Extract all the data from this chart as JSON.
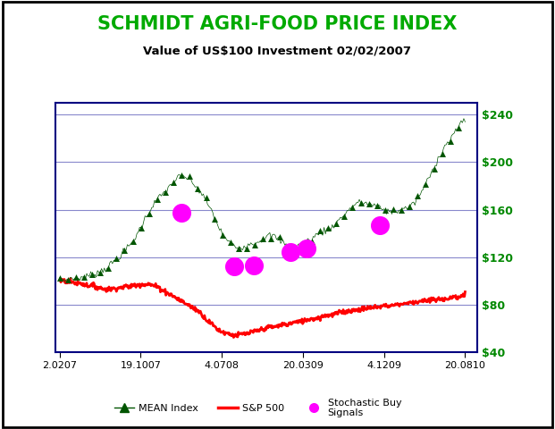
{
  "title": "SCHMIDT AGRI-FOOD PRICE INDEX",
  "subtitle": "Value of US$100 Investment 02/02/2007",
  "title_color": "#00aa00",
  "subtitle_color": "#000000",
  "outer_bg_color": "#ffffff",
  "plot_bg_color": "#ffffff",
  "x_tick_labels": [
    "2.0207",
    "19.1007",
    "4.0708",
    "20.0309",
    "4.1209",
    "20.0810"
  ],
  "y_right_labels": [
    "$40",
    "$80",
    "$120",
    "$160",
    "$200",
    "$240"
  ],
  "y_right_values": [
    40,
    80,
    120,
    160,
    200,
    240
  ],
  "ylim": [
    40,
    250
  ],
  "xlim": [
    0,
    1
  ],
  "mean_color": "#005500",
  "sp500_color": "#ff0000",
  "signal_color": "#ff00ff",
  "grid_color": "#8888cc",
  "border_color": "#000080",
  "mean_index_x": [
    0.0,
    0.02,
    0.04,
    0.06,
    0.08,
    0.1,
    0.12,
    0.14,
    0.16,
    0.18,
    0.2,
    0.22,
    0.24,
    0.26,
    0.28,
    0.3,
    0.32,
    0.34,
    0.36,
    0.38,
    0.4,
    0.42,
    0.44,
    0.46,
    0.48,
    0.5,
    0.52,
    0.54,
    0.56,
    0.58,
    0.6,
    0.62,
    0.64,
    0.66,
    0.68,
    0.7,
    0.72,
    0.74,
    0.76,
    0.78,
    0.8,
    0.82,
    0.84,
    0.86,
    0.88,
    0.9,
    0.92,
    0.94,
    0.96,
    0.98,
    1.0
  ],
  "mean_index_y": [
    100,
    101,
    102,
    103,
    105,
    108,
    112,
    118,
    125,
    133,
    145,
    158,
    168,
    175,
    183,
    188,
    185,
    178,
    168,
    155,
    140,
    132,
    128,
    130,
    132,
    135,
    138,
    135,
    130,
    128,
    132,
    135,
    140,
    143,
    148,
    155,
    162,
    166,
    165,
    163,
    160,
    158,
    160,
    162,
    168,
    180,
    193,
    208,
    218,
    228,
    235
  ],
  "sp500_x": [
    0.0,
    0.01,
    0.02,
    0.03,
    0.04,
    0.05,
    0.06,
    0.07,
    0.08,
    0.09,
    0.1,
    0.11,
    0.12,
    0.13,
    0.14,
    0.15,
    0.16,
    0.17,
    0.18,
    0.19,
    0.2,
    0.21,
    0.22,
    0.23,
    0.24,
    0.25,
    0.26,
    0.27,
    0.28,
    0.29,
    0.3,
    0.31,
    0.32,
    0.33,
    0.34,
    0.35,
    0.36,
    0.37,
    0.38,
    0.39,
    0.4,
    0.41,
    0.42,
    0.43,
    0.44,
    0.45,
    0.46,
    0.47,
    0.48,
    0.49,
    0.5,
    0.51,
    0.52,
    0.53,
    0.54,
    0.55,
    0.56,
    0.57,
    0.58,
    0.59,
    0.6,
    0.61,
    0.62,
    0.63,
    0.64,
    0.65,
    0.66,
    0.67,
    0.68,
    0.69,
    0.7,
    0.71,
    0.72,
    0.73,
    0.74,
    0.75,
    0.76,
    0.77,
    0.78,
    0.79,
    0.8,
    0.81,
    0.82,
    0.83,
    0.84,
    0.85,
    0.86,
    0.87,
    0.88,
    0.89,
    0.9,
    0.91,
    0.92,
    0.93,
    0.94,
    0.95,
    0.96,
    0.97,
    0.98,
    0.99,
    1.0
  ],
  "sp500_y": [
    100,
    100,
    99,
    99,
    98,
    98,
    97,
    96,
    96,
    95,
    94,
    93,
    93,
    93,
    94,
    94,
    95,
    95,
    96,
    96,
    97,
    97,
    97,
    96,
    95,
    93,
    91,
    89,
    87,
    85,
    83,
    81,
    79,
    77,
    75,
    72,
    68,
    65,
    62,
    59,
    57,
    56,
    55,
    54,
    54,
    55,
    55,
    56,
    57,
    58,
    59,
    60,
    61,
    61,
    62,
    63,
    63,
    64,
    65,
    65,
    66,
    67,
    68,
    68,
    69,
    70,
    71,
    71,
    72,
    73,
    74,
    74,
    75,
    75,
    76,
    76,
    77,
    77,
    78,
    78,
    79,
    79,
    79,
    80,
    80,
    81,
    81,
    82,
    82,
    83,
    83,
    83,
    84,
    84,
    84,
    85,
    85,
    86,
    86,
    87,
    88
  ],
  "signals_x": [
    0.3,
    0.43,
    0.48,
    0.57,
    0.61,
    0.79
  ],
  "signals_y": [
    157,
    112,
    113,
    124,
    127,
    147
  ]
}
